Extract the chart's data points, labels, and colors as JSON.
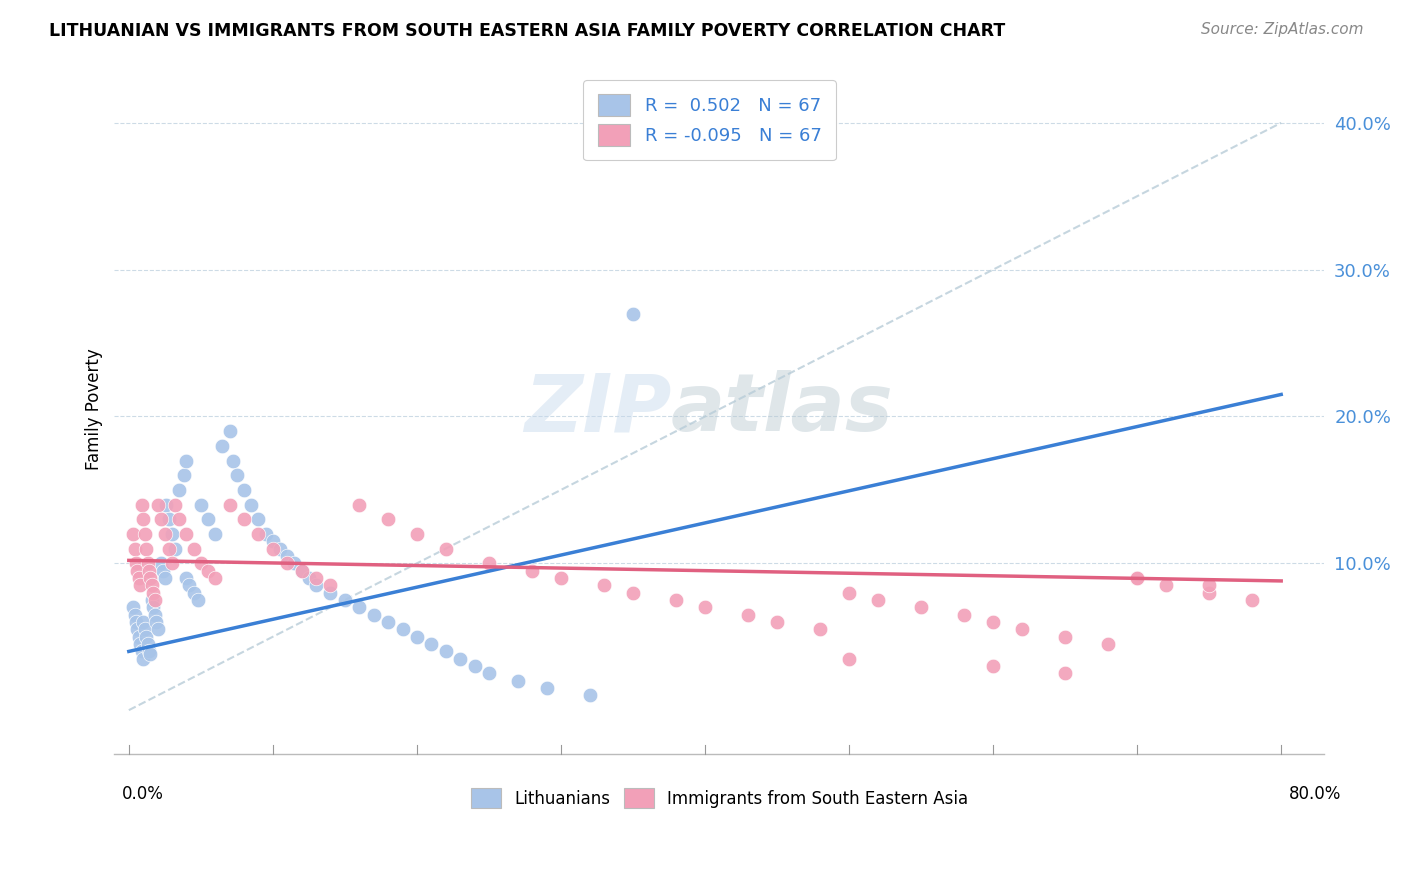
{
  "title": "LITHUANIAN VS IMMIGRANTS FROM SOUTH EASTERN ASIA FAMILY POVERTY CORRELATION CHART",
  "source": "Source: ZipAtlas.com",
  "ylabel": "Family Poverty",
  "watermark_1": "ZIP",
  "watermark_2": "atlas",
  "legend_r1": "R =  0.502   N = 67",
  "legend_r2": "R = -0.095   N = 67",
  "color_blue": "#a8c4e8",
  "color_blue_line": "#3a7fd5",
  "color_pink": "#f2a0b8",
  "color_pink_line": "#e06080",
  "color_dashed": "#b8ccd8",
  "blue_x": [
    0.003,
    0.004,
    0.005,
    0.006,
    0.007,
    0.008,
    0.009,
    0.01,
    0.01,
    0.011,
    0.012,
    0.013,
    0.014,
    0.015,
    0.016,
    0.017,
    0.018,
    0.019,
    0.02,
    0.022,
    0.024,
    0.025,
    0.026,
    0.028,
    0.03,
    0.032,
    0.035,
    0.038,
    0.04,
    0.04,
    0.042,
    0.045,
    0.048,
    0.05,
    0.055,
    0.06,
    0.065,
    0.07,
    0.072,
    0.075,
    0.08,
    0.085,
    0.09,
    0.095,
    0.1,
    0.105,
    0.11,
    0.115,
    0.12,
    0.125,
    0.13,
    0.14,
    0.15,
    0.16,
    0.17,
    0.18,
    0.19,
    0.2,
    0.21,
    0.22,
    0.23,
    0.24,
    0.25,
    0.27,
    0.29,
    0.32,
    0.35
  ],
  "blue_y": [
    0.07,
    0.065,
    0.06,
    0.055,
    0.05,
    0.045,
    0.04,
    0.035,
    0.06,
    0.055,
    0.05,
    0.045,
    0.04,
    0.038,
    0.075,
    0.07,
    0.065,
    0.06,
    0.055,
    0.1,
    0.095,
    0.09,
    0.14,
    0.13,
    0.12,
    0.11,
    0.15,
    0.16,
    0.17,
    0.09,
    0.085,
    0.08,
    0.075,
    0.14,
    0.13,
    0.12,
    0.18,
    0.19,
    0.17,
    0.16,
    0.15,
    0.14,
    0.13,
    0.12,
    0.115,
    0.11,
    0.105,
    0.1,
    0.095,
    0.09,
    0.085,
    0.08,
    0.075,
    0.07,
    0.065,
    0.06,
    0.055,
    0.05,
    0.045,
    0.04,
    0.035,
    0.03,
    0.025,
    0.02,
    0.015,
    0.01,
    0.27
  ],
  "pink_x": [
    0.003,
    0.004,
    0.005,
    0.006,
    0.007,
    0.008,
    0.009,
    0.01,
    0.011,
    0.012,
    0.013,
    0.014,
    0.015,
    0.016,
    0.017,
    0.018,
    0.02,
    0.022,
    0.025,
    0.028,
    0.03,
    0.032,
    0.035,
    0.04,
    0.045,
    0.05,
    0.055,
    0.06,
    0.07,
    0.08,
    0.09,
    0.1,
    0.11,
    0.12,
    0.13,
    0.14,
    0.16,
    0.18,
    0.2,
    0.22,
    0.25,
    0.28,
    0.3,
    0.33,
    0.35,
    0.38,
    0.4,
    0.43,
    0.45,
    0.48,
    0.5,
    0.52,
    0.55,
    0.58,
    0.6,
    0.62,
    0.65,
    0.68,
    0.7,
    0.72,
    0.75,
    0.78,
    0.5,
    0.6,
    0.65,
    0.7,
    0.75
  ],
  "pink_y": [
    0.12,
    0.11,
    0.1,
    0.095,
    0.09,
    0.085,
    0.14,
    0.13,
    0.12,
    0.11,
    0.1,
    0.095,
    0.09,
    0.085,
    0.08,
    0.075,
    0.14,
    0.13,
    0.12,
    0.11,
    0.1,
    0.14,
    0.13,
    0.12,
    0.11,
    0.1,
    0.095,
    0.09,
    0.14,
    0.13,
    0.12,
    0.11,
    0.1,
    0.095,
    0.09,
    0.085,
    0.14,
    0.13,
    0.12,
    0.11,
    0.1,
    0.095,
    0.09,
    0.085,
    0.08,
    0.075,
    0.07,
    0.065,
    0.06,
    0.055,
    0.08,
    0.075,
    0.07,
    0.065,
    0.06,
    0.055,
    0.05,
    0.045,
    0.09,
    0.085,
    0.08,
    0.075,
    0.035,
    0.03,
    0.025,
    0.09,
    0.085
  ],
  "blue_line_x0": 0.0,
  "blue_line_x1": 0.8,
  "blue_line_y0": 0.04,
  "blue_line_y1": 0.215,
  "pink_line_x0": 0.0,
  "pink_line_x1": 0.8,
  "pink_line_y0": 0.102,
  "pink_line_y1": 0.088,
  "dash_line_x0": 0.0,
  "dash_line_x1": 0.8,
  "dash_line_y0": 0.0,
  "dash_line_y1": 0.4,
  "xlim": [
    -0.01,
    0.83
  ],
  "ylim": [
    -0.03,
    0.44
  ],
  "ytick_vals": [
    0.1,
    0.2,
    0.3,
    0.4
  ],
  "ytick_labels": [
    "10.0%",
    "20.0%",
    "30.0%",
    "40.0%"
  ]
}
